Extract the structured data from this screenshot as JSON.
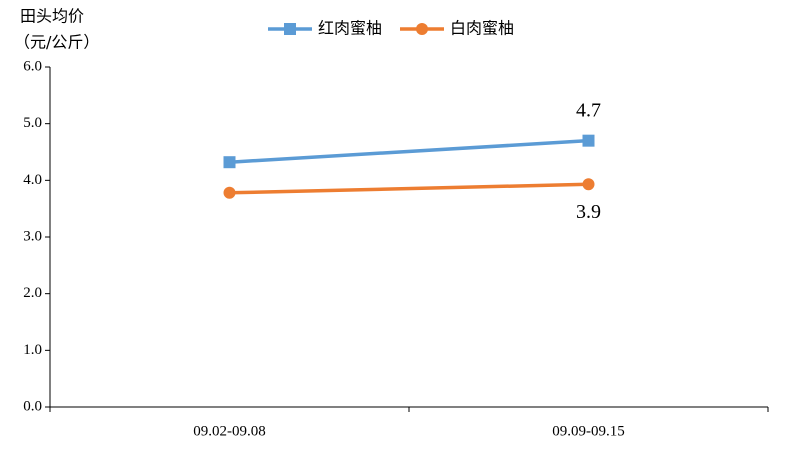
{
  "chart_data": {
    "type": "line",
    "ylabel": [
      "田头均价",
      "（元/公斤）"
    ],
    "categories": [
      "09.02-09.08",
      "09.09-09.15"
    ],
    "series": [
      {
        "name": "红肉蜜柚",
        "color": "#5b9bd5",
        "marker": "square",
        "values": [
          4.32,
          4.7
        ],
        "value_labels": [
          null,
          "4.7"
        ],
        "label_position": "above"
      },
      {
        "name": "白肉蜜柚",
        "color": "#ed7d31",
        "marker": "circle",
        "values": [
          3.78,
          3.93
        ],
        "value_labels": [
          null,
          "3.9"
        ],
        "label_position": "below"
      }
    ],
    "ylim": [
      0,
      6
    ],
    "yticks": [
      {
        "value": 0,
        "label": "0.0"
      },
      {
        "value": 1,
        "label": "1.0"
      },
      {
        "value": 2,
        "label": "2.0"
      },
      {
        "value": 3,
        "label": "3.0"
      },
      {
        "value": 4,
        "label": "4.0"
      },
      {
        "value": 5,
        "label": "5.0"
      },
      {
        "value": 6,
        "label": "6.0"
      }
    ],
    "legend": "top",
    "grid": false
  }
}
